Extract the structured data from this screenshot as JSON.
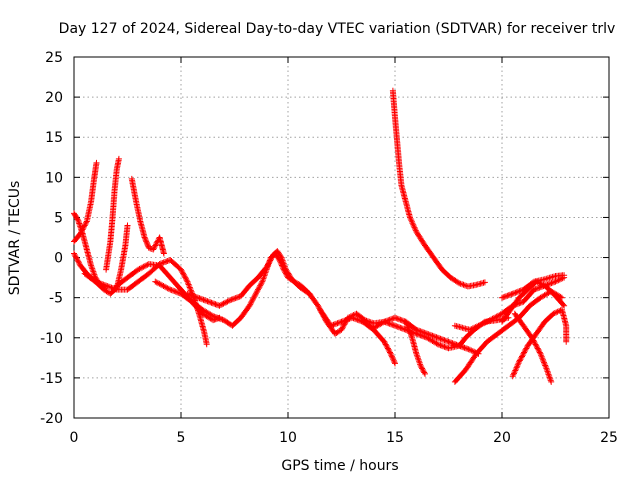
{
  "chart_data": {
    "type": "scatter",
    "title": "Day 127 of 2024, Sidereal Day-to-day VTEC variation (SDTVAR) for receiver trlv",
    "xlabel": "GPS time / hours",
    "ylabel": "SDTVAR / TECUs",
    "xlim": [
      0,
      25
    ],
    "ylim": [
      -20,
      25
    ],
    "xticks": [
      0,
      5,
      10,
      15,
      20,
      25
    ],
    "yticks": [
      -20,
      -15,
      -10,
      -5,
      0,
      5,
      10,
      15,
      20,
      25
    ],
    "grid": true,
    "marker": "+",
    "color": "#ff0000",
    "series": [
      {
        "name": "s1",
        "points": [
          [
            0.0,
            5.5
          ],
          [
            0.2,
            4.6
          ],
          [
            0.4,
            3.0
          ],
          [
            0.6,
            1.0
          ],
          [
            0.8,
            -1.0
          ],
          [
            1.0,
            -2.5
          ],
          [
            1.2,
            -3.3
          ],
          [
            1.4,
            -3.8
          ]
        ]
      },
      {
        "name": "s2",
        "points": [
          [
            0.0,
            2.0
          ],
          [
            0.3,
            3.0
          ],
          [
            0.6,
            4.5
          ],
          [
            0.8,
            7.0
          ],
          [
            0.95,
            10.0
          ],
          [
            1.05,
            11.8
          ]
        ]
      },
      {
        "name": "s3",
        "points": [
          [
            0.0,
            0.5
          ],
          [
            0.3,
            -1.0
          ],
          [
            0.6,
            -2.0
          ],
          [
            1.0,
            -3.0
          ],
          [
            1.4,
            -4.0
          ],
          [
            1.7,
            -4.5
          ],
          [
            2.0,
            -3.8
          ],
          [
            2.2,
            -1.5
          ],
          [
            2.4,
            1.5
          ],
          [
            2.5,
            4.0
          ]
        ]
      },
      {
        "name": "s4",
        "points": [
          [
            1.5,
            -1.5
          ],
          [
            1.7,
            2.0
          ],
          [
            1.8,
            5.0
          ],
          [
            1.9,
            8.5
          ],
          [
            2.0,
            11.0
          ],
          [
            2.1,
            12.3
          ]
        ]
      },
      {
        "name": "s5",
        "points": [
          [
            2.7,
            9.8
          ],
          [
            2.9,
            7.0
          ],
          [
            3.1,
            4.5
          ],
          [
            3.3,
            2.5
          ],
          [
            3.5,
            1.2
          ],
          [
            3.7,
            1.0
          ],
          [
            3.9,
            2.0
          ],
          [
            4.0,
            2.5
          ],
          [
            4.1,
            1.5
          ],
          [
            4.2,
            0.5
          ]
        ]
      },
      {
        "name": "s6",
        "points": [
          [
            0.5,
            -2.0
          ],
          [
            1.0,
            -3.0
          ],
          [
            1.5,
            -3.5
          ],
          [
            2.0,
            -4.0
          ],
          [
            2.5,
            -4.0
          ],
          [
            3.0,
            -3.0
          ],
          [
            3.5,
            -2.0
          ],
          [
            4.0,
            -0.8
          ],
          [
            4.5,
            -0.3
          ],
          [
            5.0,
            -1.5
          ],
          [
            5.3,
            -3.0
          ],
          [
            5.6,
            -5.0
          ],
          [
            5.9,
            -7.5
          ],
          [
            6.1,
            -9.5
          ],
          [
            6.2,
            -10.8
          ]
        ]
      },
      {
        "name": "s7",
        "points": [
          [
            2.0,
            -3.5
          ],
          [
            2.5,
            -2.5
          ],
          [
            3.0,
            -1.5
          ],
          [
            3.5,
            -0.8
          ],
          [
            4.0,
            -1.0
          ],
          [
            4.5,
            -2.5
          ],
          [
            5.0,
            -4.0
          ],
          [
            5.5,
            -5.5
          ],
          [
            6.0,
            -7.0
          ],
          [
            6.5,
            -7.8
          ],
          [
            6.8,
            -7.5
          ]
        ]
      },
      {
        "name": "s8",
        "points": [
          [
            3.8,
            -3.0
          ],
          [
            4.5,
            -4.0
          ],
          [
            5.0,
            -4.5
          ],
          [
            5.5,
            -5.5
          ],
          [
            6.0,
            -6.5
          ],
          [
            6.5,
            -7.3
          ],
          [
            7.0,
            -7.8
          ],
          [
            7.4,
            -8.5
          ],
          [
            7.8,
            -7.5
          ],
          [
            8.2,
            -6.0
          ],
          [
            8.5,
            -4.5
          ],
          [
            8.8,
            -3.0
          ],
          [
            9.0,
            -1.5
          ],
          [
            9.2,
            0.0
          ],
          [
            9.4,
            0.5
          ],
          [
            9.6,
            -0.3
          ],
          [
            9.8,
            -1.5
          ],
          [
            10.0,
            -2.5
          ],
          [
            10.3,
            -3.0
          ],
          [
            10.6,
            -3.5
          ],
          [
            11.0,
            -4.5
          ]
        ]
      },
      {
        "name": "s9",
        "points": [
          [
            5.3,
            -4.5
          ],
          [
            5.8,
            -5.0
          ],
          [
            6.3,
            -5.5
          ],
          [
            6.8,
            -6.0
          ],
          [
            7.3,
            -5.3
          ],
          [
            7.8,
            -4.8
          ],
          [
            8.2,
            -3.5
          ],
          [
            8.6,
            -2.5
          ],
          [
            9.0,
            -1.2
          ],
          [
            9.3,
            0.3
          ],
          [
            9.5,
            0.8
          ],
          [
            9.7,
            0.0
          ],
          [
            9.9,
            -1.5
          ],
          [
            10.2,
            -2.8
          ],
          [
            10.6,
            -3.8
          ],
          [
            11.0,
            -4.5
          ],
          [
            11.4,
            -6.0
          ],
          [
            11.8,
            -8.0
          ],
          [
            12.2,
            -9.5
          ],
          [
            12.5,
            -9.0
          ],
          [
            12.8,
            -7.5
          ],
          [
            13.2,
            -7.0
          ],
          [
            13.6,
            -7.8
          ],
          [
            14.0,
            -8.2
          ],
          [
            14.5,
            -8.0
          ],
          [
            15.0,
            -7.5
          ],
          [
            15.5,
            -8.0
          ],
          [
            16.0,
            -9.0
          ],
          [
            16.5,
            -9.5
          ],
          [
            17.0,
            -10.0
          ],
          [
            17.5,
            -10.5
          ],
          [
            18.0,
            -11.0
          ],
          [
            18.5,
            -11.5
          ],
          [
            18.9,
            -12.0
          ]
        ]
      },
      {
        "name": "s10",
        "points": [
          [
            11.5,
            -6.5
          ],
          [
            12.0,
            -8.5
          ],
          [
            12.5,
            -8.0
          ],
          [
            13.0,
            -7.5
          ],
          [
            13.5,
            -8.0
          ],
          [
            14.0,
            -8.8
          ],
          [
            14.5,
            -8.0
          ],
          [
            15.0,
            -8.5
          ],
          [
            15.5,
            -9.0
          ],
          [
            16.0,
            -9.5
          ],
          [
            16.5,
            -10.0
          ],
          [
            17.0,
            -10.8
          ],
          [
            17.5,
            -11.3
          ],
          [
            18.0,
            -11.0
          ],
          [
            18.3,
            -10.0
          ],
          [
            18.7,
            -9.0
          ],
          [
            19.2,
            -8.0
          ],
          [
            19.8,
            -7.8
          ],
          [
            20.3,
            -7.5
          ]
        ]
      },
      {
        "name": "s11",
        "points": [
          [
            13.5,
            -8.0
          ],
          [
            14.0,
            -9.0
          ],
          [
            14.5,
            -10.5
          ],
          [
            14.8,
            -12.0
          ],
          [
            15.0,
            -13.2
          ]
        ]
      },
      {
        "name": "s12",
        "points": [
          [
            15.5,
            -8.0
          ],
          [
            15.8,
            -10.0
          ],
          [
            16.0,
            -12.0
          ],
          [
            16.2,
            -13.5
          ],
          [
            16.4,
            -14.5
          ]
        ]
      },
      {
        "name": "s13",
        "points": [
          [
            14.9,
            20.8
          ],
          [
            15.0,
            17.5
          ],
          [
            15.1,
            14.5
          ],
          [
            15.2,
            11.5
          ],
          [
            15.3,
            9.0
          ],
          [
            15.5,
            7.0
          ],
          [
            15.7,
            5.0
          ],
          [
            16.0,
            3.2
          ],
          [
            16.4,
            1.5
          ],
          [
            16.8,
            0.0
          ],
          [
            17.2,
            -1.5
          ],
          [
            17.6,
            -2.5
          ],
          [
            18.0,
            -3.2
          ],
          [
            18.4,
            -3.6
          ],
          [
            18.8,
            -3.4
          ],
          [
            19.2,
            -3.1
          ]
        ]
      },
      {
        "name": "s14",
        "points": [
          [
            17.8,
            -15.5
          ],
          [
            18.3,
            -14.0
          ],
          [
            18.8,
            -12.0
          ],
          [
            19.3,
            -10.5
          ],
          [
            19.8,
            -9.5
          ],
          [
            20.3,
            -8.5
          ],
          [
            20.8,
            -7.5
          ],
          [
            21.3,
            -6.0
          ],
          [
            21.8,
            -5.0
          ],
          [
            22.3,
            -4.2
          ],
          [
            22.8,
            -5.0
          ]
        ]
      },
      {
        "name": "s15",
        "points": [
          [
            17.8,
            -8.5
          ],
          [
            18.5,
            -9.0
          ],
          [
            19.3,
            -8.0
          ],
          [
            20.0,
            -7.0
          ],
          [
            20.5,
            -6.0
          ],
          [
            21.0,
            -5.5
          ],
          [
            21.5,
            -4.0
          ],
          [
            22.0,
            -3.5
          ],
          [
            22.5,
            -3.0
          ],
          [
            22.9,
            -2.5
          ]
        ]
      },
      {
        "name": "s16",
        "points": [
          [
            20.0,
            -8.0
          ],
          [
            20.4,
            -6.5
          ],
          [
            20.8,
            -5.0
          ],
          [
            21.2,
            -4.0
          ],
          [
            21.6,
            -3.0
          ],
          [
            22.0,
            -3.5
          ],
          [
            22.4,
            -4.5
          ],
          [
            22.9,
            -6.0
          ]
        ]
      },
      {
        "name": "s17",
        "points": [
          [
            20.6,
            -7.0
          ],
          [
            21.0,
            -8.5
          ],
          [
            21.4,
            -10.0
          ],
          [
            21.8,
            -12.0
          ],
          [
            22.1,
            -14.0
          ],
          [
            22.3,
            -15.5
          ]
        ]
      },
      {
        "name": "s18",
        "points": [
          [
            20.5,
            -14.8
          ],
          [
            20.8,
            -13.0
          ],
          [
            21.2,
            -11.0
          ],
          [
            21.6,
            -9.5
          ],
          [
            22.0,
            -8.0
          ],
          [
            22.4,
            -7.0
          ],
          [
            22.8,
            -6.5
          ],
          [
            23.0,
            -8.5
          ],
          [
            23.0,
            -10.5
          ]
        ]
      },
      {
        "name": "s19",
        "points": [
          [
            20.0,
            -5.0
          ],
          [
            20.5,
            -4.5
          ],
          [
            21.0,
            -4.0
          ],
          [
            21.5,
            -3.0
          ],
          [
            22.0,
            -2.7
          ],
          [
            22.5,
            -2.3
          ],
          [
            22.9,
            -2.2
          ]
        ]
      }
    ]
  }
}
